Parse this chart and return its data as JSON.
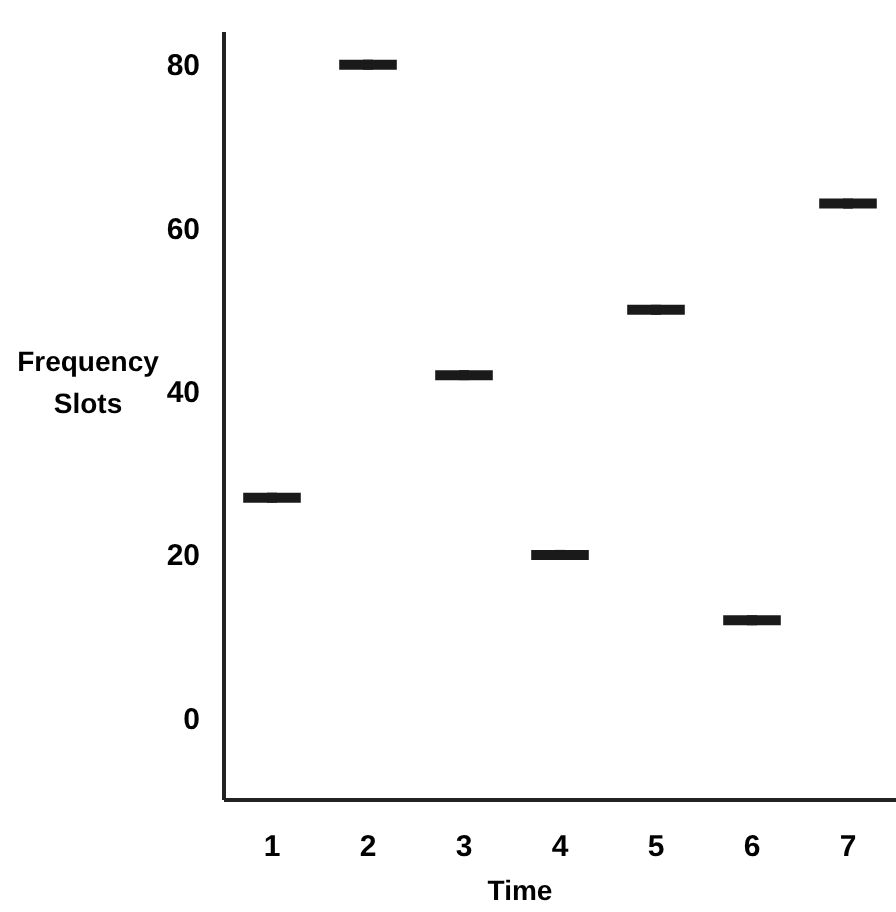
{
  "chart_data": {
    "type": "scatter",
    "xlabel": "Time",
    "ylabel": "Frequency\nSlots",
    "x": [
      1,
      2,
      3,
      4,
      5,
      6,
      7
    ],
    "values": [
      27,
      80,
      42,
      20,
      50,
      12,
      63
    ],
    "xerrors": [
      0.3,
      0.3,
      0.3,
      0.3,
      0.3,
      0.3,
      0.3
    ],
    "marker": "square",
    "color": "#1a1a1a",
    "xlim": [
      0.5,
      7.5
    ],
    "xticks": [
      1,
      2,
      3,
      4,
      5,
      6,
      7
    ],
    "ylim": [
      -10,
      84
    ],
    "yticks": [
      0,
      20,
      40,
      60,
      80
    ],
    "grid": false
  }
}
